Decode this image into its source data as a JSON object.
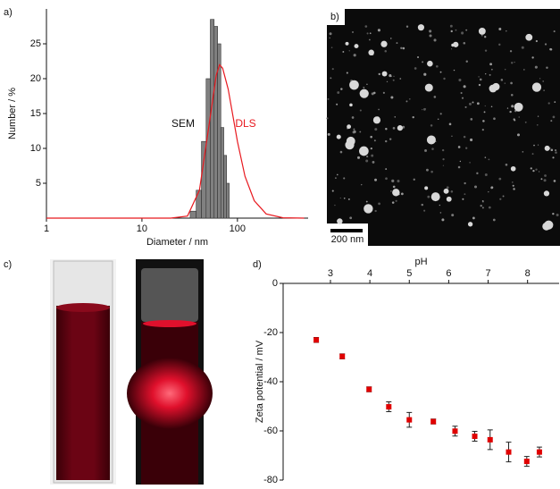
{
  "labels": {
    "a": "a)",
    "b": "b)",
    "c": "c)",
    "d": "d)",
    "scale_bar": "200 nm"
  },
  "chart_data": [
    {
      "type": "histogram",
      "xlabel": "Diameter / nm",
      "ylabel": "Number / %",
      "xscale": "log",
      "xlim": [
        1,
        550
      ],
      "xticks": [
        1,
        10,
        100
      ],
      "ylim": [
        0,
        30
      ],
      "yticks": [
        5,
        10,
        15,
        20,
        25
      ],
      "series": [
        {
          "name": "SEM",
          "type": "histogram",
          "color": "#808080",
          "bins": [
            32,
            37,
            42,
            47,
            52,
            57,
            62,
            67,
            72,
            77,
            82
          ],
          "values": [
            1,
            4,
            11,
            20,
            28.5,
            27.5,
            25,
            13,
            9,
            5
          ]
        },
        {
          "name": "DLS",
          "type": "line",
          "color": "#e8191f",
          "x": [
            1,
            10,
            20,
            30,
            40,
            50,
            60,
            65,
            70,
            80,
            100,
            120,
            150,
            200,
            300,
            500
          ],
          "values": [
            0,
            0,
            0,
            0.3,
            4,
            13,
            20.5,
            22,
            21.5,
            18.5,
            11,
            6,
            2.5,
            0.6,
            0.05,
            0
          ]
        }
      ]
    },
    {
      "type": "scatter",
      "xlabel": "pH",
      "ylabel": "Zeta potential / mV",
      "xlim": [
        1.8,
        8.8
      ],
      "xticks": [
        3,
        4,
        5,
        6,
        7,
        8
      ],
      "ylim": [
        -80,
        0
      ],
      "yticks": [
        -80,
        -60,
        -40,
        -20,
        0
      ],
      "series": [
        {
          "color": "#e00000",
          "x": [
            2.64,
            3.3,
            3.98,
            4.48,
            5.0,
            5.61,
            6.16,
            6.66,
            7.05,
            7.52,
            7.98,
            8.3
          ],
          "values": [
            -23,
            -29.7,
            -43.1,
            -50.2,
            -55.5,
            -56.2,
            -60.1,
            -62.2,
            -63.6,
            -68.6,
            -72.4,
            -68.6
          ],
          "errors": [
            1,
            1,
            1,
            2,
            3,
            1,
            2,
            2,
            4,
            4,
            2,
            2
          ]
        }
      ]
    }
  ]
}
